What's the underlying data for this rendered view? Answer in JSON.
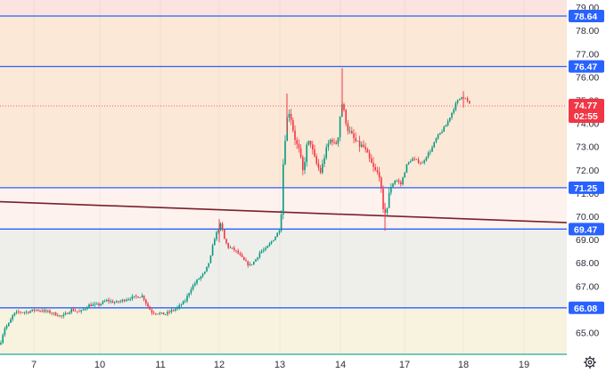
{
  "chart_data": {
    "type": "candlestick",
    "price_axis": {
      "ylim": [
        64.0,
        79.4
      ],
      "ticks": [
        "65.00",
        "66.00",
        "67.00",
        "68.00",
        "69.00",
        "70.00",
        "71.00",
        "72.00",
        "73.00",
        "74.00",
        "75.00",
        "76.00",
        "77.00",
        "78.00",
        "79.00"
      ]
    },
    "time_axis": {
      "labels": [
        "7",
        "10",
        "11",
        "12",
        "13",
        "14",
        "17",
        "18",
        "19"
      ]
    },
    "current_price": {
      "value": "74.77",
      "countdown": "02:55",
      "color": "#f23645"
    },
    "levels": [
      {
        "value": "78.64",
        "color": "#2962ff"
      },
      {
        "value": "76.47",
        "color": "#2962ff"
      },
      {
        "value": "71.25",
        "color": "#2962ff"
      },
      {
        "value": "69.47",
        "color": "#2962ff"
      },
      {
        "value": "66.08",
        "color": "#2962ff"
      }
    ],
    "trendline": {
      "from": 70.65,
      "to": 69.75,
      "color": "#7a1f2b"
    },
    "zones": [
      {
        "from": 78.64,
        "to": 79.4,
        "color": "#fbe3df"
      },
      {
        "from": 71.25,
        "to": 78.64,
        "color": "#fbe8d6"
      },
      {
        "from": 69.47,
        "to": 71.25,
        "color": "#fdf2ee"
      },
      {
        "from": 66.08,
        "to": 69.47,
        "color": "#eeeeea"
      },
      {
        "from": 64.0,
        "to": 66.08,
        "color": "#f7f3df"
      }
    ],
    "up_color": "#089981",
    "down_color": "#f23645",
    "series_path": [
      [
        0,
        64.5
      ],
      [
        5,
        65.2
      ],
      [
        10,
        65.4
      ],
      [
        15,
        65.8
      ],
      [
        20,
        65.9
      ],
      [
        30,
        65.9
      ],
      [
        40,
        66.0
      ],
      [
        55,
        65.9
      ],
      [
        70,
        65.7
      ],
      [
        80,
        66.0
      ],
      [
        90,
        65.9
      ],
      [
        100,
        66.2
      ],
      [
        110,
        66.2
      ],
      [
        120,
        66.4
      ],
      [
        130,
        66.3
      ],
      [
        145,
        66.5
      ],
      [
        160,
        66.6
      ],
      [
        165,
        66.2
      ],
      [
        170,
        65.9
      ],
      [
        185,
        65.8
      ],
      [
        200,
        66.1
      ],
      [
        208,
        66.4
      ],
      [
        214,
        66.9
      ],
      [
        222,
        67.3
      ],
      [
        230,
        67.6
      ],
      [
        236,
        68.2
      ],
      [
        240,
        69.0
      ],
      [
        244,
        69.4
      ],
      [
        248,
        69.7
      ],
      [
        252,
        69.0
      ],
      [
        256,
        68.7
      ],
      [
        262,
        68.6
      ],
      [
        268,
        68.4
      ],
      [
        274,
        68.1
      ],
      [
        280,
        67.9
      ],
      [
        286,
        68.1
      ],
      [
        292,
        68.5
      ],
      [
        298,
        68.6
      ],
      [
        304,
        68.9
      ],
      [
        310,
        69.2
      ],
      [
        314,
        69.5
      ],
      [
        316,
        70.4
      ],
      [
        318,
        72.5
      ],
      [
        320,
        73.4
      ],
      [
        322,
        74.2
      ],
      [
        325,
        74.6
      ],
      [
        328,
        73.9
      ],
      [
        332,
        73.2
      ],
      [
        336,
        72.8
      ],
      [
        340,
        71.9
      ],
      [
        344,
        73.0
      ],
      [
        348,
        73.3
      ],
      [
        352,
        72.6
      ],
      [
        356,
        72.2
      ],
      [
        360,
        71.9
      ],
      [
        364,
        72.6
      ],
      [
        368,
        73.1
      ],
      [
        372,
        73.4
      ],
      [
        376,
        73.0
      ],
      [
        380,
        73.6
      ],
      [
        383,
        75.0
      ],
      [
        386,
        74.5
      ],
      [
        390,
        73.8
      ],
      [
        396,
        73.4
      ],
      [
        402,
        73.1
      ],
      [
        408,
        73.0
      ],
      [
        414,
        72.5
      ],
      [
        420,
        72.0
      ],
      [
        426,
        71.8
      ],
      [
        430,
        70.2
      ],
      [
        434,
        70.3
      ],
      [
        438,
        71.3
      ],
      [
        444,
        71.6
      ],
      [
        450,
        71.4
      ],
      [
        456,
        72.2
      ],
      [
        462,
        72.5
      ],
      [
        468,
        72.4
      ],
      [
        474,
        72.3
      ],
      [
        478,
        72.6
      ],
      [
        484,
        72.9
      ],
      [
        490,
        73.4
      ],
      [
        496,
        73.7
      ],
      [
        500,
        73.9
      ],
      [
        506,
        74.4
      ],
      [
        512,
        74.9
      ],
      [
        518,
        75.2
      ],
      [
        522,
        75.1
      ],
      [
        528,
        74.77
      ]
    ]
  },
  "ui": {
    "settings_icon": "gear-icon"
  }
}
